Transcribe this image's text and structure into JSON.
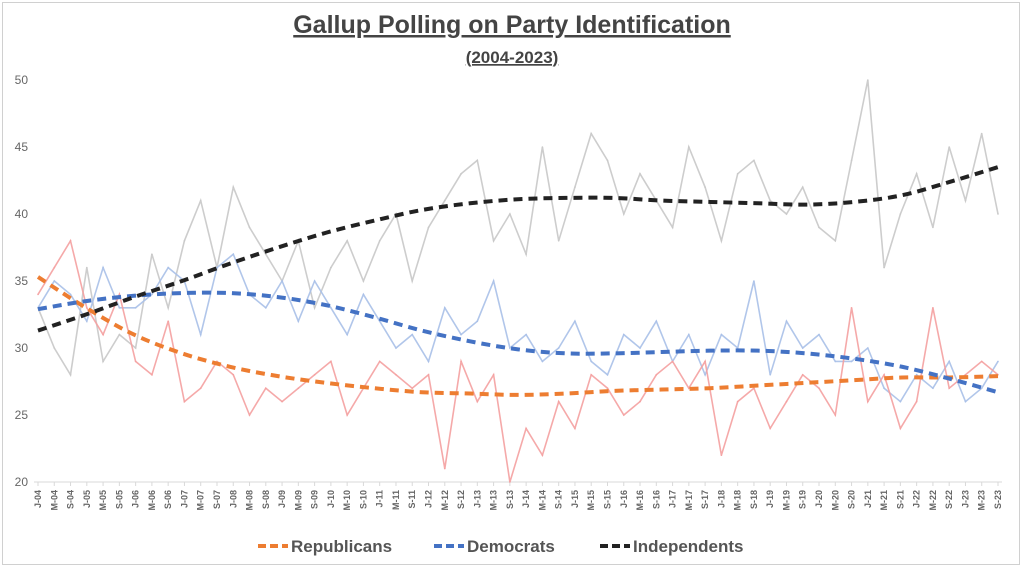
{
  "chart_data": {
    "type": "line",
    "title": "Gallup Polling on Party Identification",
    "subtitle": "(2004-2023)",
    "xlabel": "",
    "ylabel": "",
    "ylim": [
      20,
      50
    ],
    "yticks": [
      20,
      25,
      30,
      35,
      40,
      45,
      50
    ],
    "grid": false,
    "legend_position": "bottom",
    "categories": [
      "J-04",
      "M-04",
      "S-04",
      "J-05",
      "M-05",
      "S-05",
      "J-06",
      "M-06",
      "S-06",
      "J-07",
      "M-07",
      "S-07",
      "J-08",
      "M-08",
      "S-08",
      "J-09",
      "M-09",
      "S-09",
      "J-10",
      "M-10",
      "S-10",
      "J-11",
      "M-11",
      "S-11",
      "J-12",
      "M-12",
      "S-12",
      "J-13",
      "M-13",
      "S-13",
      "J-14",
      "M-14",
      "S-14",
      "J-15",
      "M-15",
      "S-15",
      "J-16",
      "M-16",
      "S-16",
      "J-17",
      "M-17",
      "S-17",
      "J-18",
      "M-18",
      "S-18",
      "J-19",
      "M-19",
      "S-19",
      "J-20",
      "M-20",
      "S-20",
      "J-21",
      "M-21",
      "S-21",
      "J-22",
      "M-22",
      "S-22",
      "J-23",
      "M-23",
      "S-23"
    ],
    "series": [
      {
        "name": "Independents",
        "color": "#c8c8c8",
        "values": [
          33,
          30,
          28,
          36,
          29,
          31,
          30,
          37,
          33,
          38,
          41,
          36,
          42,
          39,
          37,
          35,
          38,
          33,
          36,
          38,
          35,
          38,
          40,
          35,
          39,
          41,
          43,
          44,
          38,
          40,
          37,
          45,
          38,
          42,
          46,
          44,
          40,
          43,
          41,
          39,
          45,
          42,
          38,
          43,
          44,
          41,
          40,
          42,
          39,
          38,
          44,
          50,
          36,
          40,
          43,
          39,
          45,
          41,
          46,
          40
        ]
      },
      {
        "name": "Democrats",
        "color": "#a9c0e8",
        "values": [
          33,
          35,
          34,
          32,
          36,
          33,
          33,
          34,
          36,
          35,
          31,
          36,
          37,
          34,
          33,
          35,
          32,
          35,
          33,
          31,
          34,
          32,
          30,
          31,
          29,
          33,
          31,
          32,
          35,
          30,
          31,
          29,
          30,
          32,
          29,
          28,
          31,
          30,
          32,
          29,
          31,
          28,
          31,
          30,
          35,
          28,
          32,
          30,
          31,
          29,
          29,
          30,
          27,
          26,
          28,
          27,
          29,
          26,
          27,
          29
        ]
      },
      {
        "name": "Republicans",
        "color": "#f4a0a0",
        "values": [
          34,
          36,
          38,
          33,
          31,
          34,
          29,
          28,
          32,
          26,
          27,
          29,
          28,
          25,
          27,
          26,
          27,
          28,
          29,
          25,
          27,
          29,
          28,
          27,
          28,
          21,
          29,
          26,
          28,
          20,
          24,
          22,
          26,
          24,
          28,
          27,
          25,
          26,
          28,
          29,
          27,
          29,
          22,
          26,
          27,
          24,
          26,
          28,
          27,
          25,
          33,
          26,
          28,
          24,
          26,
          33,
          27,
          28,
          29,
          28
        ]
      }
    ],
    "trendlines": [
      {
        "name": "Republicans",
        "label": "Republicans",
        "color": "#ed7d31",
        "values": [
          35.3,
          33.0,
          31.0,
          29.6,
          28.6,
          27.9,
          27.4,
          27.0,
          26.7,
          26.6,
          26.5,
          26.6,
          26.8,
          26.9,
          27.0,
          27.2,
          27.4,
          27.6,
          27.8,
          27.8,
          27.9
        ]
      },
      {
        "name": "Democrats",
        "label": "Democrats",
        "color": "#4472c4",
        "values": [
          32.9,
          33.5,
          33.9,
          34.1,
          34.1,
          33.8,
          33.2,
          32.3,
          31.3,
          30.5,
          29.9,
          29.6,
          29.6,
          29.7,
          29.8,
          29.8,
          29.6,
          29.2,
          28.6,
          27.7,
          26.7
        ]
      },
      {
        "name": "Independents",
        "label": "Independents",
        "color": "#222222",
        "values": [
          31.3,
          32.5,
          33.8,
          35.0,
          36.3,
          37.5,
          38.6,
          39.5,
          40.3,
          40.8,
          41.1,
          41.2,
          41.2,
          41.0,
          40.9,
          40.8,
          40.7,
          40.9,
          41.4,
          42.4,
          43.5
        ]
      }
    ]
  }
}
